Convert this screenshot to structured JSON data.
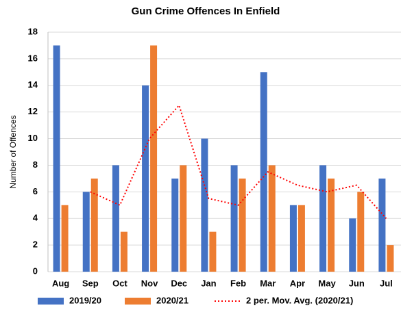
{
  "chart_data": {
    "type": "bar",
    "title": "Gun Crime Offences In Enfield",
    "y_label": "Number of Offences",
    "categories": [
      "Aug",
      "Sep",
      "Oct",
      "Nov",
      "Dec",
      "Jan",
      "Feb",
      "Mar",
      "Apr",
      "May",
      "Jun",
      "Jul"
    ],
    "series": [
      {
        "name": "2019/20",
        "color": "#4472c4",
        "type": "bar",
        "values": [
          17,
          6,
          8,
          14,
          7,
          10,
          8,
          15,
          5,
          8,
          4,
          7
        ]
      },
      {
        "name": "2020/21",
        "color": "#ed7d31",
        "type": "bar",
        "values": [
          5,
          7,
          3,
          17,
          8,
          3,
          7,
          8,
          5,
          7,
          6,
          2
        ]
      },
      {
        "name": "2 per. Mov. Avg. (2020/21)",
        "color": "#ff0000",
        "type": "line",
        "style": "dotted",
        "values": [
          null,
          6,
          5,
          10,
          12.5,
          5.5,
          5,
          7.5,
          6.5,
          6,
          6.5,
          4
        ]
      }
    ],
    "ylim": [
      0,
      18
    ],
    "yticks": [
      0,
      2,
      4,
      6,
      8,
      10,
      12,
      14,
      16,
      18
    ],
    "grid": true,
    "legend": "bottom"
  }
}
